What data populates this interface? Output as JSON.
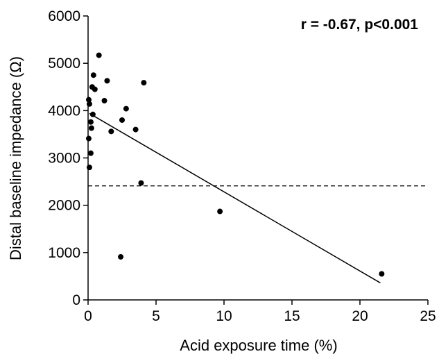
{
  "chart_data": {
    "type": "scatter",
    "title": "",
    "xlabel": "Acid exposure time (%)",
    "ylabel": "Distal baseline impedance (Ω)",
    "xlim": [
      0,
      25
    ],
    "ylim": [
      0,
      6000
    ],
    "x_ticks": [
      0,
      5,
      10,
      15,
      20,
      25
    ],
    "y_ticks": [
      0,
      1000,
      2000,
      3000,
      4000,
      5000,
      6000
    ],
    "grid": false,
    "annotation": "r = -0.67, p<0.001",
    "series": [
      {
        "points": [
          {
            "x": 0.8,
            "y": 5170
          },
          {
            "x": 0.4,
            "y": 4750
          },
          {
            "x": 4.1,
            "y": 4590
          },
          {
            "x": 1.4,
            "y": 4630
          },
          {
            "x": 0.3,
            "y": 4500
          },
          {
            "x": 0.5,
            "y": 4450
          },
          {
            "x": 0.05,
            "y": 4230
          },
          {
            "x": 0.1,
            "y": 4140
          },
          {
            "x": 1.2,
            "y": 4210
          },
          {
            "x": 2.8,
            "y": 4040
          },
          {
            "x": 0.35,
            "y": 3920
          },
          {
            "x": 2.5,
            "y": 3800
          },
          {
            "x": 0.2,
            "y": 3760
          },
          {
            "x": 0.25,
            "y": 3630
          },
          {
            "x": 1.7,
            "y": 3560
          },
          {
            "x": 3.5,
            "y": 3600
          },
          {
            "x": 0.05,
            "y": 3410
          },
          {
            "x": 0.2,
            "y": 3100
          },
          {
            "x": 0.1,
            "y": 2800
          },
          {
            "x": 3.9,
            "y": 2470
          },
          {
            "x": 9.7,
            "y": 1870
          },
          {
            "x": 2.4,
            "y": 910
          },
          {
            "x": 21.6,
            "y": 550
          }
        ]
      }
    ],
    "regression_line": {
      "x": [
        0.1,
        21.5
      ],
      "y": [
        3940,
        360
      ]
    },
    "reference_line": {
      "y": 2410,
      "style": "dashed",
      "x": [
        0,
        25
      ]
    }
  }
}
